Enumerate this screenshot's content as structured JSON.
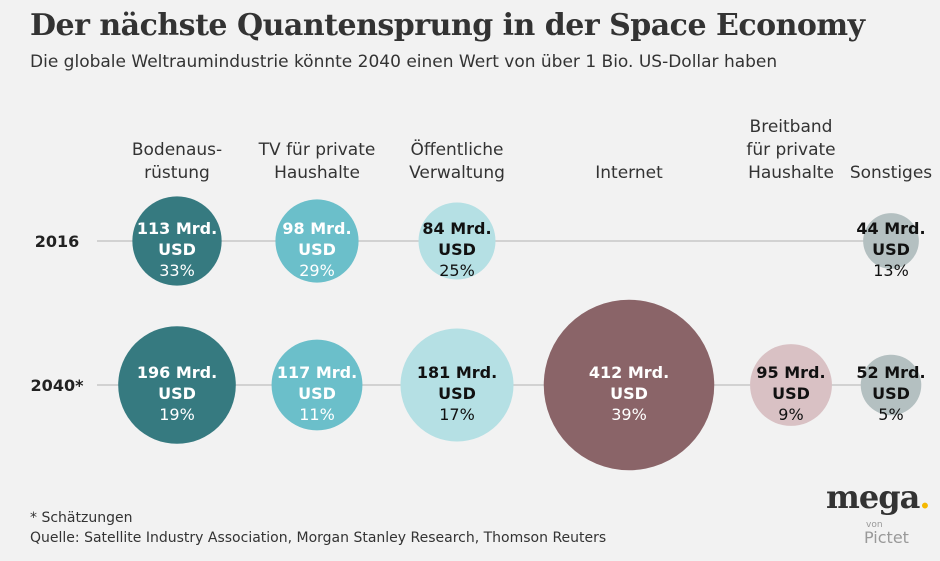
{
  "title": "Der nächste Quantensprung in der Space Economy",
  "subtitle": "Die globale Weltraumindustrie könnte 2040 einen Wert von über 1 Bio. US-Dollar haben",
  "footnote": "* Schätzungen",
  "source": "Quelle: Satellite Industry Association, Morgan Stanley Research, Thomson Reuters",
  "logo": {
    "word": "mega",
    "dot": ".",
    "von": "von",
    "brand": "Pictet"
  },
  "chart_data": {
    "type": "bubble",
    "categories": [
      [
        "Bodenaus-",
        "rüstung"
      ],
      [
        "TV für private",
        "Haushalte"
      ],
      [
        "Öffentliche",
        "Verwaltung"
      ],
      [
        "Internet"
      ],
      [
        "Breitband",
        "für private",
        "Haushalte"
      ],
      [
        "Sonstiges"
      ]
    ],
    "unit_line1": "Mrd.",
    "unit_line2": "USD",
    "colors": [
      "#367a80",
      "#6bbfca",
      "#b5e0e4",
      "#8a6468",
      "#d9c1c4",
      "#b4c0c1"
    ],
    "text_colors": [
      "#ffffff",
      "#ffffff",
      "#111111",
      "#ffffff",
      "#111111",
      "#111111"
    ],
    "line_color": "#c8c8c8",
    "series": [
      {
        "name": "2016",
        "values": [
          113,
          98,
          84,
          null,
          null,
          44
        ],
        "shares": [
          "33%",
          "29%",
          "25%",
          null,
          null,
          "13%"
        ]
      },
      {
        "name": "2040*",
        "values": [
          196,
          117,
          181,
          412,
          95,
          52
        ],
        "shares": [
          "19%",
          "11%",
          "17%",
          "39%",
          "9%",
          "5%"
        ]
      }
    ]
  }
}
